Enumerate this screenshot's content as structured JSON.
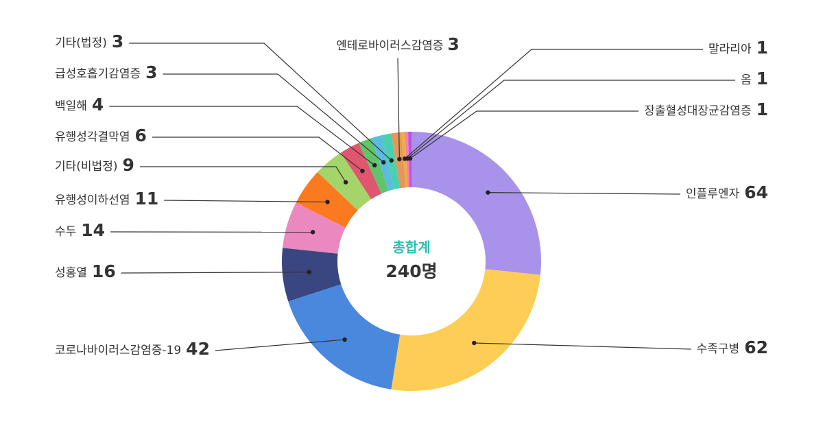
{
  "chart_data": {
    "type": "pie",
    "center_label": "총합계",
    "center_value": "240명",
    "categories": [
      "인플루엔자",
      "수족구병",
      "코로나바이러스감염증-19",
      "성홍열",
      "수두",
      "유행성이하선염",
      "기타(비법정)",
      "유행성각결막염",
      "백일해",
      "급성호흡기감염증",
      "기타(법정)",
      "엔테로바이러스감염증",
      "말라리아",
      "옴",
      "장출혈성대장균감염증"
    ],
    "values": [
      64,
      62,
      42,
      16,
      14,
      11,
      9,
      6,
      4,
      3,
      3,
      3,
      1,
      1,
      1
    ],
    "colors": [
      "#a992ea",
      "#fdcd56",
      "#4a88de",
      "#3a4680",
      "#ec88c0",
      "#fb7a20",
      "#a5d46a",
      "#e0566e",
      "#62c46a",
      "#5cbce0",
      "#49d0b0",
      "#e2985a",
      "#f0b030",
      "#f080c0",
      "#c050e0"
    ]
  }
}
